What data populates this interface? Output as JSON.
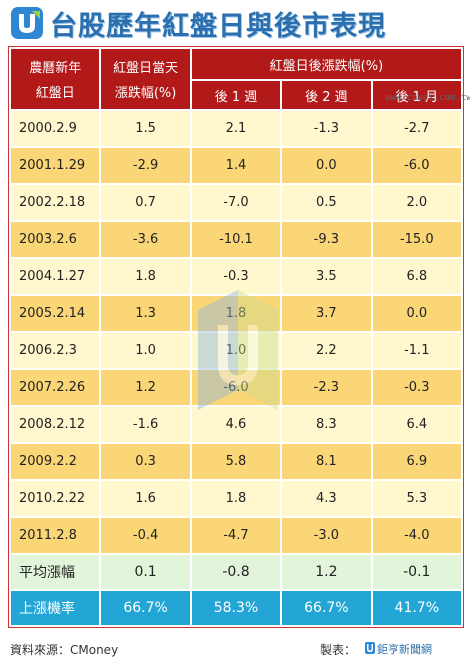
{
  "title": "台股歷年紅盤日與後市表現",
  "watermark_site": "www.cnyes.com.tw",
  "headers": {
    "date_col": [
      "農曆新年",
      "紅盤日"
    ],
    "day_col": [
      "紅盤日當天",
      "漲跌幅(%)"
    ],
    "after_group": "紅盤日後漲跌幅(%)",
    "week1": "後 1 週",
    "week2": "後 2 週",
    "month1": "後 1 月"
  },
  "chart_data": {
    "type": "table",
    "rows": [
      {
        "date": "2000.2.9",
        "day": "1.5",
        "w1": "2.1",
        "w2": "-1.3",
        "m1": "-2.7"
      },
      {
        "date": "2001.1.29",
        "day": "-2.9",
        "w1": "1.4",
        "w2": "0.0",
        "m1": "-6.0"
      },
      {
        "date": "2002.2.18",
        "day": "0.7",
        "w1": "-7.0",
        "w2": "0.5",
        "m1": "2.0"
      },
      {
        "date": "2003.2.6",
        "day": "-3.6",
        "w1": "-10.1",
        "w2": "-9.3",
        "m1": "-15.0"
      },
      {
        "date": "2004.1.27",
        "day": "1.8",
        "w1": "-0.3",
        "w2": "3.5",
        "m1": "6.8"
      },
      {
        "date": "2005.2.14",
        "day": "1.3",
        "w1": "1.8",
        "w2": "3.7",
        "m1": "0.0"
      },
      {
        "date": "2006.2.3",
        "day": "1.0",
        "w1": "1.0",
        "w2": "2.2",
        "m1": "-1.1"
      },
      {
        "date": "2007.2.26",
        "day": "1.2",
        "w1": "-6.0",
        "w2": "-2.3",
        "m1": "-0.3"
      },
      {
        "date": "2008.2.12",
        "day": "-1.6",
        "w1": "4.6",
        "w2": "8.3",
        "m1": "6.4"
      },
      {
        "date": "2009.2.2",
        "day": "0.3",
        "w1": "5.8",
        "w2": "8.1",
        "m1": "6.9"
      },
      {
        "date": "2010.2.22",
        "day": "1.6",
        "w1": "1.8",
        "w2": "4.3",
        "m1": "5.3"
      },
      {
        "date": "2011.2.8",
        "day": "-0.4",
        "w1": "-4.7",
        "w2": "-3.0",
        "m1": "-4.0"
      }
    ],
    "average": {
      "label": "平均漲幅",
      "day": "0.1",
      "w1": "-0.8",
      "w2": "1.2",
      "m1": "-0.1"
    },
    "up_rate": {
      "label": "上漲機率",
      "day": "66.7%",
      "w1": "58.3%",
      "w2": "66.7%",
      "m1": "41.7%"
    }
  },
  "footer": {
    "source": "資料來源：CMoney",
    "maker_label": "製表：",
    "maker_name": "鉅亨新聞網"
  },
  "colors": {
    "title": "#2b6fae",
    "header_bg": "#b21a1a",
    "row_light": "#fff8cf",
    "row_dark": "#fbd676",
    "avg_row": "#e2f5db",
    "up_row": "#23a6d5"
  }
}
